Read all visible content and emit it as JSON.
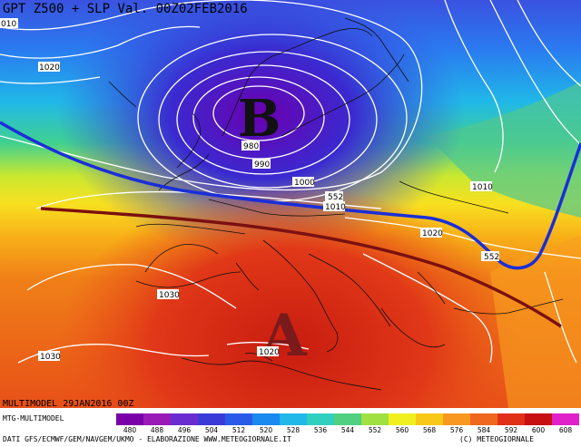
{
  "title": "GPT Z500 + SLP Val. 00Z02FEB2016",
  "map": {
    "low_label": "B",
    "high_label": "A",
    "isobar_labels": [
      "010",
      "1020",
      "980",
      "990",
      "1000",
      "1010",
      "1020",
      "1030",
      "1030",
      "1010",
      "1020"
    ],
    "height_labels": [
      "552",
      "552"
    ],
    "colors": {
      "trough_line": "#1a2ed8",
      "ridge_line": "#7a1010",
      "letter_low": "#111111",
      "letter_high": "#7a1a1a"
    }
  },
  "footer": {
    "run_info": "MULTIMODEL 29JAN2016 00Z",
    "model": "MTG-MULTIMODEL",
    "source": "DATI GFS/ECMWF/GEM/NAVGEM/UKMO - ELABORAZIONE WWW.METEOGIORNALE.IT",
    "copyright": "(C) METEOGIORNALE"
  },
  "scale": {
    "values": [
      "480",
      "488",
      "496",
      "504",
      "512",
      "520",
      "528",
      "536",
      "544",
      "552",
      "560",
      "568",
      "576",
      "584",
      "592",
      "600",
      "608"
    ],
    "colors": [
      "#7a00a8",
      "#9a1ab8",
      "#6a2bd0",
      "#3a3ad8",
      "#2a5ae8",
      "#1a8af0",
      "#20b8e8",
      "#30d0c0",
      "#50d080",
      "#a0e040",
      "#f0f020",
      "#f8c818",
      "#f89820",
      "#f06820",
      "#e03018",
      "#c81010",
      "#e020c8"
    ]
  }
}
